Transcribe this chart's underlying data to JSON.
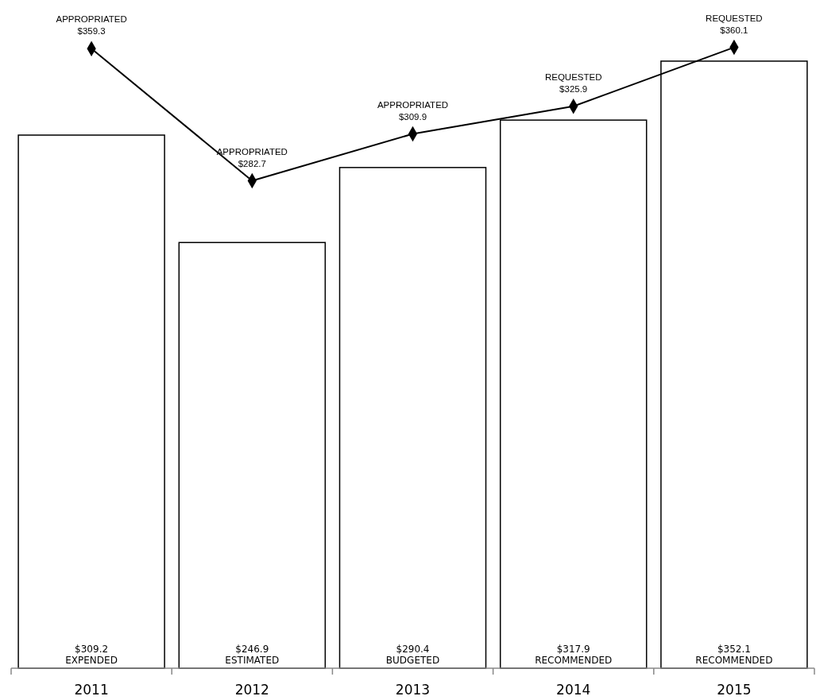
{
  "chart_data": {
    "type": "bar",
    "categories": [
      "2011",
      "2012",
      "2013",
      "2014",
      "2015"
    ],
    "tick_labels": "x",
    "series": [
      {
        "color": "#ffffff",
        "values": [
          309.2,
          246.9,
          290.4,
          317.9,
          352.1
        ],
        "value_labels": [
          "$309.2\nEXPENDED",
          "$246.9\nESTIMATED",
          "$290.4\nBUDGETED",
          "$317.9\nRECOMMENDED",
          "$352.1\nRECOMMENDED"
        ]
      },
      {
        "type": "line",
        "color": "#000000",
        "marker": "diamond",
        "line_style": "solid",
        "values": [
          359.3,
          282.7,
          309.9,
          325.9,
          360.1
        ],
        "value_labels": [
          "APPROPRIATED\n$359.3",
          "APPROPRIATED\n$282.7",
          "APPROPRIATED\n$309.9",
          "REQUESTED\n$325.9",
          "REQUESTED\n$360.1"
        ]
      }
    ]
  }
}
